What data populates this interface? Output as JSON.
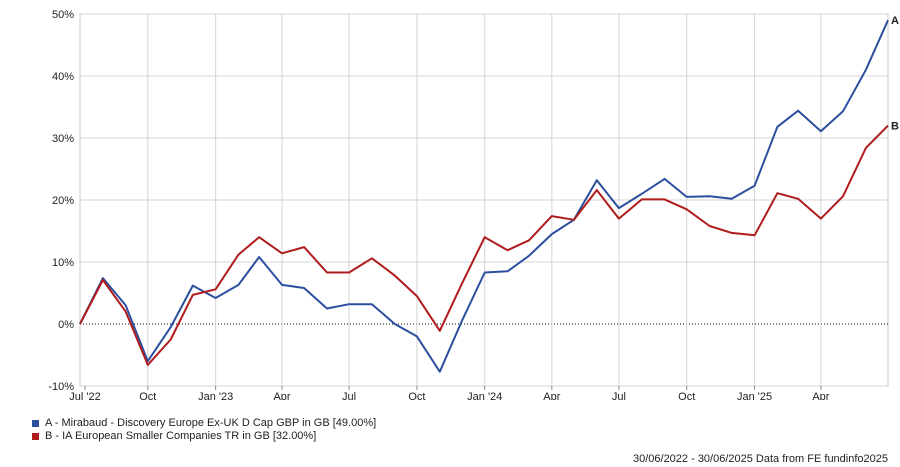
{
  "chart_data": {
    "type": "line",
    "x_ticks": [
      "Jul '22",
      "Oct",
      "Jan '23",
      "Apr",
      "Jul",
      "Oct",
      "Jan '24",
      "Apr",
      "Jul",
      "Oct",
      "Jan '25",
      "Apr"
    ],
    "y_ticks": [
      "50%",
      "40%",
      "30%",
      "20%",
      "10%",
      "0%",
      "-10%"
    ],
    "ylim": [
      -10,
      50
    ],
    "grid": true,
    "zero_line": "dotted",
    "legend_placement": "bottom-left",
    "dates": [
      "2022-06-30",
      "2022-07-31",
      "2022-08-31",
      "2022-09-30",
      "2022-10-31",
      "2022-11-30",
      "2022-12-31",
      "2023-01-31",
      "2023-02-28",
      "2023-03-31",
      "2023-04-30",
      "2023-05-31",
      "2023-06-30",
      "2023-07-31",
      "2023-08-31",
      "2023-09-30",
      "2023-10-31",
      "2023-11-30",
      "2023-12-31",
      "2024-01-31",
      "2024-02-29",
      "2024-03-31",
      "2024-04-30",
      "2024-05-31",
      "2024-06-30",
      "2024-07-31",
      "2024-08-31",
      "2024-09-30",
      "2024-10-31",
      "2024-11-30",
      "2024-12-31",
      "2025-01-31",
      "2025-02-28",
      "2025-03-31",
      "2025-04-30",
      "2025-05-31",
      "2025-06-30"
    ],
    "series": [
      {
        "name": "A - Mirabaud - Discovery Europe Ex-UK D Cap GBP in GB [49.00%]",
        "end_label": "A",
        "color": "#2b4f9e",
        "values": [
          0,
          7.4,
          3.0,
          -6.0,
          -0.5,
          6.2,
          4.2,
          6.3,
          10.8,
          6.3,
          5.8,
          2.5,
          3.2,
          3.2,
          0,
          -2.0,
          -7.7,
          0.5,
          8.3,
          8.5,
          11.0,
          14.5,
          16.8,
          23.2,
          18.7,
          21.0,
          23.4,
          20.5,
          20.6,
          20.2,
          22.3,
          31.8,
          34.4,
          31.1,
          34.3,
          41.0,
          49.0
        ]
      },
      {
        "name": "B - IA European Smaller Companies TR in GB [32.00%]",
        "end_label": "B",
        "color": "#b01c1c",
        "values": [
          0,
          7.1,
          2.0,
          -6.6,
          -2.5,
          4.7,
          5.6,
          11.2,
          14.0,
          11.4,
          12.4,
          8.3,
          8.3,
          10.6,
          7.8,
          4.5,
          -1.1,
          6.5,
          14.0,
          11.9,
          13.5,
          17.4,
          16.8,
          21.6,
          17.0,
          20.1,
          20.1,
          18.5,
          15.8,
          14.7,
          14.3,
          21.1,
          20.2,
          17.0,
          20.6,
          28.4,
          32.0
        ]
      }
    ]
  },
  "footer_text": "30/06/2022 - 30/06/2025 Data from FE fundinfo2025"
}
